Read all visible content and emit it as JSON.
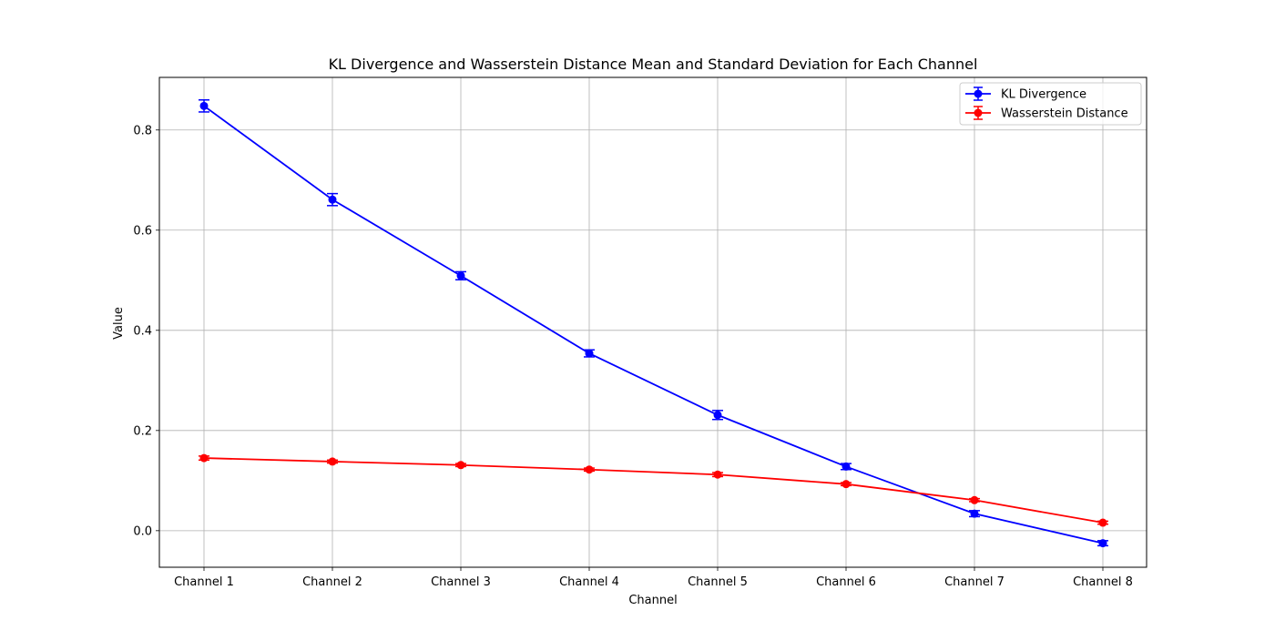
{
  "chart_data": {
    "type": "line",
    "title": "KL Divergence and Wasserstein Distance Mean and Standard Deviation for Each Channel",
    "xlabel": "Channel",
    "ylabel": "Value",
    "categories": [
      "Channel 1",
      "Channel 2",
      "Channel 3",
      "Channel 4",
      "Channel 5",
      "Channel 6",
      "Channel 7",
      "Channel 8"
    ],
    "ylim": [
      -0.073,
      0.905
    ],
    "yticks": [
      0.0,
      0.2,
      0.4,
      0.6,
      0.8
    ],
    "ytick_labels": [
      "0.0",
      "0.2",
      "0.4",
      "0.6",
      "0.8"
    ],
    "grid": true,
    "legend_position": "upper right",
    "series": [
      {
        "name": "KL Divergence",
        "color": "#0000ff",
        "marker": "circle",
        "values": [
          0.848,
          0.661,
          0.509,
          0.354,
          0.231,
          0.128,
          0.034,
          -0.025
        ],
        "errors": [
          0.012,
          0.012,
          0.008,
          0.007,
          0.009,
          0.006,
          0.006,
          0.005
        ]
      },
      {
        "name": "Wasserstein Distance",
        "color": "#ff0000",
        "marker": "circle",
        "values": [
          0.145,
          0.138,
          0.131,
          0.122,
          0.112,
          0.093,
          0.061,
          0.016
        ],
        "errors": [
          0.004,
          0.003,
          0.003,
          0.003,
          0.004,
          0.003,
          0.003,
          0.003
        ]
      }
    ]
  }
}
